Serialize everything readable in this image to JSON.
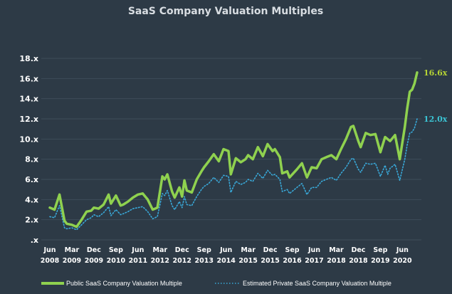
{
  "chart_data": {
    "type": "line",
    "title": "SaaS Company Valuation Multiples",
    "xlabel": "",
    "ylabel": "",
    "ylim": [
      0,
      18
    ],
    "y_ticks": [
      0,
      2,
      4,
      6,
      8,
      10,
      12,
      14,
      16,
      18
    ],
    "y_tick_labels": [
      ".x",
      "2.x",
      "4.x",
      "6.x",
      "8.x",
      "10.x",
      "12.x",
      "14.x",
      "16.x",
      "18.x"
    ],
    "x_range": [
      2008.42,
      2020.92
    ],
    "x_ticks": [
      {
        "x": 2008.42,
        "month": "Jun",
        "year": "2008"
      },
      {
        "x": 2009.17,
        "month": "Mar",
        "year": "2009"
      },
      {
        "x": 2009.92,
        "month": "Dec",
        "year": "2009"
      },
      {
        "x": 2010.67,
        "month": "Sep",
        "year": "2010"
      },
      {
        "x": 2011.42,
        "month": "Jun",
        "year": "2011"
      },
      {
        "x": 2012.17,
        "month": "Mar",
        "year": "2012"
      },
      {
        "x": 2012.92,
        "month": "Dec",
        "year": "2012"
      },
      {
        "x": 2013.67,
        "month": "Sep",
        "year": "2013"
      },
      {
        "x": 2014.42,
        "month": "Jun",
        "year": "2014"
      },
      {
        "x": 2015.17,
        "month": "Mar",
        "year": "2015"
      },
      {
        "x": 2015.92,
        "month": "Dec",
        "year": "2015"
      },
      {
        "x": 2016.67,
        "month": "Sep",
        "year": "2016"
      },
      {
        "x": 2017.42,
        "month": "Jun",
        "year": "2017"
      },
      {
        "x": 2018.17,
        "month": "Mar",
        "year": "2018"
      },
      {
        "x": 2018.92,
        "month": "Dec",
        "year": "2018"
      },
      {
        "x": 2019.67,
        "month": "Sep",
        "year": "2019"
      },
      {
        "x": 2020.42,
        "month": "Jun",
        "year": "2020"
      }
    ],
    "series": [
      {
        "name": "Public SaaS Company Valuation Multiple",
        "color": "#8fd14f",
        "style": "solid",
        "end_label": "16.6x",
        "points": [
          [
            2008.42,
            3.2
          ],
          [
            2008.58,
            3.0
          ],
          [
            2008.75,
            4.5
          ],
          [
            2008.92,
            1.9
          ],
          [
            2009.0,
            1.6
          ],
          [
            2009.17,
            1.5
          ],
          [
            2009.33,
            1.3
          ],
          [
            2009.5,
            2.0
          ],
          [
            2009.67,
            2.8
          ],
          [
            2009.83,
            2.9
          ],
          [
            2009.92,
            3.2
          ],
          [
            2010.08,
            3.1
          ],
          [
            2010.25,
            3.5
          ],
          [
            2010.42,
            4.5
          ],
          [
            2010.5,
            3.6
          ],
          [
            2010.67,
            4.4
          ],
          [
            2010.83,
            3.4
          ],
          [
            2010.92,
            3.5
          ],
          [
            2011.08,
            3.8
          ],
          [
            2011.25,
            4.2
          ],
          [
            2011.42,
            4.5
          ],
          [
            2011.58,
            4.6
          ],
          [
            2011.75,
            4.0
          ],
          [
            2011.92,
            3.0
          ],
          [
            2012.08,
            3.2
          ],
          [
            2012.25,
            6.3
          ],
          [
            2012.33,
            6.0
          ],
          [
            2012.42,
            6.5
          ],
          [
            2012.58,
            4.8
          ],
          [
            2012.67,
            4.2
          ],
          [
            2012.83,
            5.2
          ],
          [
            2012.92,
            4.3
          ],
          [
            2013.0,
            5.9
          ],
          [
            2013.08,
            4.9
          ],
          [
            2013.25,
            4.7
          ],
          [
            2013.42,
            6.0
          ],
          [
            2013.58,
            6.8
          ],
          [
            2013.67,
            7.2
          ],
          [
            2013.83,
            7.8
          ],
          [
            2014.0,
            8.5
          ],
          [
            2014.17,
            7.8
          ],
          [
            2014.33,
            9.0
          ],
          [
            2014.5,
            8.8
          ],
          [
            2014.58,
            6.5
          ],
          [
            2014.75,
            8.1
          ],
          [
            2014.92,
            7.7
          ],
          [
            2015.08,
            8.0
          ],
          [
            2015.17,
            8.4
          ],
          [
            2015.33,
            8.0
          ],
          [
            2015.5,
            9.2
          ],
          [
            2015.67,
            8.3
          ],
          [
            2015.83,
            9.5
          ],
          [
            2016.0,
            8.8
          ],
          [
            2016.08,
            9.0
          ],
          [
            2016.25,
            8.2
          ],
          [
            2016.33,
            6.6
          ],
          [
            2016.5,
            6.8
          ],
          [
            2016.58,
            6.2
          ],
          [
            2016.83,
            7.0
          ],
          [
            2017.0,
            7.6
          ],
          [
            2017.17,
            6.2
          ],
          [
            2017.33,
            7.2
          ],
          [
            2017.5,
            7.1
          ],
          [
            2017.67,
            8.0
          ],
          [
            2017.83,
            8.2
          ],
          [
            2018.0,
            8.4
          ],
          [
            2018.17,
            8.0
          ],
          [
            2018.33,
            9.0
          ],
          [
            2018.5,
            10.0
          ],
          [
            2018.67,
            11.2
          ],
          [
            2018.75,
            11.3
          ],
          [
            2018.92,
            9.8
          ],
          [
            2019.0,
            9.2
          ],
          [
            2019.17,
            10.6
          ],
          [
            2019.33,
            10.4
          ],
          [
            2019.5,
            10.5
          ],
          [
            2019.67,
            8.7
          ],
          [
            2019.83,
            10.2
          ],
          [
            2020.0,
            9.8
          ],
          [
            2020.17,
            10.4
          ],
          [
            2020.33,
            8.0
          ],
          [
            2020.5,
            11.2
          ],
          [
            2020.58,
            13.0
          ],
          [
            2020.67,
            14.7
          ],
          [
            2020.75,
            14.9
          ],
          [
            2020.83,
            15.5
          ],
          [
            2020.92,
            16.6
          ]
        ]
      },
      {
        "name": "Estimated Private SaaS Company Valuation Multiple",
        "color": "#39a9d9",
        "style": "dotted",
        "end_label": "12.0x",
        "points": [
          [
            2008.42,
            2.3
          ],
          [
            2008.58,
            2.2
          ],
          [
            2008.75,
            3.4
          ],
          [
            2008.92,
            1.2
          ],
          [
            2009.0,
            1.1
          ],
          [
            2009.17,
            1.2
          ],
          [
            2009.33,
            1.0
          ],
          [
            2009.5,
            1.5
          ],
          [
            2009.67,
            2.0
          ],
          [
            2009.83,
            2.2
          ],
          [
            2009.92,
            2.5
          ],
          [
            2010.08,
            2.3
          ],
          [
            2010.25,
            2.7
          ],
          [
            2010.42,
            3.3
          ],
          [
            2010.5,
            2.4
          ],
          [
            2010.67,
            3.0
          ],
          [
            2010.83,
            2.5
          ],
          [
            2010.92,
            2.6
          ],
          [
            2011.08,
            2.8
          ],
          [
            2011.25,
            3.1
          ],
          [
            2011.42,
            3.2
          ],
          [
            2011.58,
            3.3
          ],
          [
            2011.75,
            2.8
          ],
          [
            2011.92,
            2.1
          ],
          [
            2012.08,
            2.3
          ],
          [
            2012.25,
            4.6
          ],
          [
            2012.33,
            4.4
          ],
          [
            2012.42,
            4.9
          ],
          [
            2012.58,
            3.4
          ],
          [
            2012.67,
            3.0
          ],
          [
            2012.83,
            3.8
          ],
          [
            2012.92,
            3.2
          ],
          [
            2013.0,
            4.3
          ],
          [
            2013.08,
            3.5
          ],
          [
            2013.25,
            3.4
          ],
          [
            2013.42,
            4.3
          ],
          [
            2013.58,
            5.0
          ],
          [
            2013.67,
            5.3
          ],
          [
            2013.83,
            5.6
          ],
          [
            2014.0,
            6.2
          ],
          [
            2014.17,
            5.7
          ],
          [
            2014.33,
            6.4
          ],
          [
            2014.5,
            6.3
          ],
          [
            2014.58,
            4.7
          ],
          [
            2014.75,
            5.8
          ],
          [
            2014.92,
            5.5
          ],
          [
            2015.08,
            5.7
          ],
          [
            2015.17,
            6.0
          ],
          [
            2015.33,
            5.8
          ],
          [
            2015.5,
            6.6
          ],
          [
            2015.67,
            6.1
          ],
          [
            2015.83,
            6.9
          ],
          [
            2016.0,
            6.4
          ],
          [
            2016.08,
            6.5
          ],
          [
            2016.25,
            6.0
          ],
          [
            2016.33,
            4.8
          ],
          [
            2016.5,
            5.0
          ],
          [
            2016.58,
            4.6
          ],
          [
            2016.83,
            5.2
          ],
          [
            2017.0,
            5.6
          ],
          [
            2017.17,
            4.5
          ],
          [
            2017.33,
            5.2
          ],
          [
            2017.5,
            5.2
          ],
          [
            2017.67,
            5.8
          ],
          [
            2017.83,
            6.0
          ],
          [
            2018.0,
            6.2
          ],
          [
            2018.17,
            5.9
          ],
          [
            2018.33,
            6.6
          ],
          [
            2018.5,
            7.2
          ],
          [
            2018.67,
            8.0
          ],
          [
            2018.75,
            8.1
          ],
          [
            2018.92,
            7.0
          ],
          [
            2019.0,
            6.7
          ],
          [
            2019.17,
            7.6
          ],
          [
            2019.33,
            7.5
          ],
          [
            2019.5,
            7.6
          ],
          [
            2019.67,
            6.3
          ],
          [
            2019.83,
            7.4
          ],
          [
            2019.92,
            6.5
          ],
          [
            2020.0,
            7.1
          ],
          [
            2020.17,
            7.5
          ],
          [
            2020.33,
            5.9
          ],
          [
            2020.5,
            8.0
          ],
          [
            2020.58,
            9.4
          ],
          [
            2020.67,
            10.6
          ],
          [
            2020.75,
            10.7
          ],
          [
            2020.83,
            11.1
          ],
          [
            2020.92,
            12.0
          ]
        ]
      }
    ],
    "legend": {
      "placement": "bottom",
      "items": [
        "Public SaaS Company Valuation Multiple",
        "Estimated Private SaaS Company Valuation Multiple"
      ]
    }
  }
}
